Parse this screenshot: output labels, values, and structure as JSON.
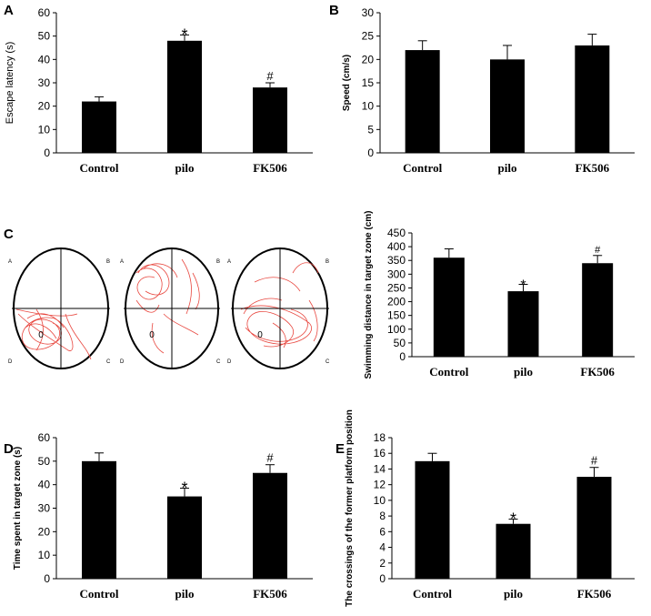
{
  "chart_data": [
    {
      "panel": "A",
      "type": "bar",
      "categories": [
        "Control",
        "pilo",
        "FK506"
      ],
      "values": [
        22,
        48,
        28
      ],
      "errors": [
        2,
        2.5,
        2
      ],
      "significance": [
        "",
        "*",
        "#"
      ],
      "ylabel": "Escape latency (s)",
      "ylim": [
        0,
        60
      ],
      "yticks": [
        0,
        10,
        20,
        30,
        40,
        50,
        60
      ]
    },
    {
      "panel": "B",
      "type": "bar",
      "categories": [
        "Control",
        "pilo",
        "FK506"
      ],
      "values": [
        22,
        20,
        23
      ],
      "errors": [
        2,
        3,
        2.4
      ],
      "significance": [
        "",
        "",
        ""
      ],
      "ylabel": "Speed (cm/s)",
      "ylim": [
        0,
        30
      ],
      "yticks": [
        0,
        5,
        10,
        15,
        20,
        25,
        30
      ]
    },
    {
      "panel": "C",
      "type": "bar",
      "categories": [
        "Control",
        "pilo",
        "FK506"
      ],
      "values": [
        360,
        238,
        340
      ],
      "errors": [
        32,
        25,
        28
      ],
      "significance": [
        "",
        "*",
        "#"
      ],
      "ylabel": "Swimming distance in target zone (cm)",
      "ylim": [
        0,
        450
      ],
      "yticks": [
        0,
        50,
        100,
        150,
        200,
        250,
        300,
        350,
        400,
        450
      ]
    },
    {
      "panel": "D",
      "type": "bar",
      "categories": [
        "Control",
        "pilo",
        "FK506"
      ],
      "values": [
        50,
        35,
        45
      ],
      "errors": [
        3.5,
        3.5,
        3.5
      ],
      "significance": [
        "",
        "*",
        "#"
      ],
      "ylabel": "Time spent in target zone (s)",
      "ylim": [
        0,
        60
      ],
      "yticks": [
        0,
        10,
        20,
        30,
        40,
        50,
        60
      ]
    },
    {
      "panel": "E",
      "type": "bar",
      "categories": [
        "Control",
        "pilo",
        "FK506"
      ],
      "values": [
        15,
        7,
        13
      ],
      "errors": [
        1,
        0.6,
        1.2
      ],
      "significance": [
        "",
        "*",
        "#"
      ],
      "ylabel": "The crossings of the former platform position",
      "ylim": [
        0,
        18
      ],
      "yticks": [
        0,
        2,
        4,
        6,
        8,
        10,
        12,
        14,
        16,
        18
      ]
    }
  ],
  "maze": {
    "quadrants": [
      "A",
      "B",
      "C",
      "D"
    ],
    "platform_marker": "0",
    "path_color": "#e8473f"
  }
}
